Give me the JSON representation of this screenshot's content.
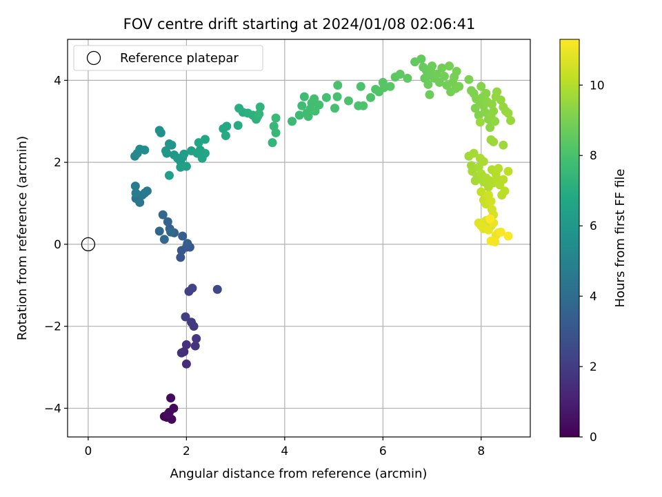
{
  "chart_data": {
    "type": "scatter",
    "title": "FOV centre drift starting at 2024/01/08 02:06:41",
    "xlabel": "Angular distance from reference (arcmin)",
    "ylabel": "Rotation from reference (arcmin)",
    "xlim": [
      -0.42,
      9.0
    ],
    "ylim": [
      -4.7,
      5.0
    ],
    "x_ticks": [
      0,
      2,
      4,
      6,
      8
    ],
    "y_ticks": [
      -4,
      -2,
      0,
      2,
      4
    ],
    "x_tick_labels": [
      "0",
      "2",
      "4",
      "6",
      "8"
    ],
    "y_tick_labels": [
      "−4",
      "−2",
      "0",
      "2",
      "4"
    ],
    "grid": true,
    "legend": {
      "position": "top-left",
      "entries": [
        "Reference platepar"
      ]
    },
    "reference_point": {
      "x": 0,
      "y": 0,
      "marker": "open-circle"
    },
    "colorbar": {
      "label": "Hours from first FF file",
      "range": [
        0,
        11.3
      ],
      "ticks": [
        0,
        2,
        4,
        6,
        8,
        10
      ],
      "tick_labels": [
        "0",
        "2",
        "4",
        "6",
        "8",
        "10"
      ],
      "colormap": "viridis"
    },
    "points": [
      [
        1.55,
        -4.2,
        0.05
      ],
      [
        1.6,
        -4.22,
        0.1
      ],
      [
        1.65,
        -4.1,
        0.15
      ],
      [
        1.7,
        -4.27,
        0.2
      ],
      [
        1.74,
        -4.0,
        0.25
      ],
      [
        1.68,
        -3.75,
        0.3
      ],
      [
        1.62,
        -4.15,
        0.35
      ],
      [
        1.95,
        -2.62,
        1.4
      ],
      [
        2.0,
        -2.92,
        1.5
      ],
      [
        1.9,
        -2.65,
        1.55
      ],
      [
        2.0,
        -2.45,
        1.6
      ],
      [
        2.18,
        -2.48,
        1.7
      ],
      [
        2.2,
        -2.3,
        1.8
      ],
      [
        2.15,
        -2.0,
        1.9
      ],
      [
        2.1,
        -1.9,
        1.95
      ],
      [
        1.98,
        -1.77,
        2.0
      ],
      [
        2.05,
        -1.15,
        2.2
      ],
      [
        2.12,
        -1.07,
        2.3
      ],
      [
        2.63,
        -1.1,
        2.4
      ],
      [
        1.88,
        -0.32,
        3.0
      ],
      [
        1.9,
        -0.15,
        3.1
      ],
      [
        2.0,
        -0.07,
        3.15
      ],
      [
        2.07,
        -0.07,
        3.2
      ],
      [
        2.02,
        0.02,
        3.3
      ],
      [
        1.92,
        0.2,
        3.4
      ],
      [
        1.75,
        0.28,
        3.5
      ],
      [
        1.66,
        0.38,
        3.55
      ],
      [
        1.62,
        0.55,
        3.6
      ],
      [
        1.52,
        0.72,
        3.7
      ],
      [
        1.45,
        0.32,
        3.75
      ],
      [
        1.55,
        0.12,
        3.8
      ],
      [
        1.68,
        0.3,
        3.85
      ],
      [
        0.97,
        1.12,
        4.3
      ],
      [
        1.05,
        1.02,
        4.4
      ],
      [
        1.1,
        1.2,
        4.5
      ],
      [
        1.15,
        1.25,
        4.55
      ],
      [
        1.2,
        1.3,
        4.6
      ],
      [
        0.96,
        1.42,
        4.65
      ],
      [
        0.97,
        1.25,
        4.7
      ],
      [
        0.95,
        2.15,
        5.2
      ],
      [
        1.0,
        2.22,
        5.3
      ],
      [
        1.05,
        2.32,
        5.4
      ],
      [
        1.15,
        2.3,
        5.5
      ],
      [
        1.45,
        2.78,
        5.6
      ],
      [
        1.48,
        2.72,
        5.65
      ],
      [
        1.6,
        2.22,
        5.8
      ],
      [
        1.65,
        2.45,
        5.85
      ],
      [
        1.7,
        2.42,
        5.9
      ],
      [
        1.58,
        2.28,
        5.95
      ],
      [
        1.75,
        2.18,
        6.0
      ],
      [
        1.82,
        2.1,
        6.1
      ],
      [
        1.88,
        2.02,
        6.15
      ],
      [
        1.92,
        2.12,
        6.2
      ],
      [
        1.95,
        2.2,
        6.25
      ],
      [
        1.88,
        1.88,
        6.3
      ],
      [
        2.0,
        1.9,
        6.35
      ],
      [
        1.65,
        1.68,
        6.4
      ],
      [
        2.1,
        2.28,
        6.45
      ],
      [
        2.22,
        2.22,
        6.5
      ],
      [
        2.28,
        2.3,
        6.55
      ],
      [
        2.32,
        2.1,
        6.6
      ],
      [
        2.38,
        2.22,
        6.65
      ],
      [
        2.25,
        2.48,
        6.7
      ],
      [
        2.38,
        2.56,
        6.75
      ],
      [
        2.75,
        2.82,
        6.8
      ],
      [
        2.82,
        2.88,
        6.85
      ],
      [
        2.8,
        2.65,
        6.9
      ],
      [
        3.05,
        2.9,
        6.95
      ],
      [
        3.07,
        3.32,
        7.0
      ],
      [
        3.15,
        3.22,
        7.05
      ],
      [
        3.25,
        3.2,
        7.1
      ],
      [
        3.35,
        3.15,
        7.15
      ],
      [
        3.42,
        3.05,
        7.2
      ],
      [
        3.45,
        3.12,
        7.25
      ],
      [
        3.5,
        3.35,
        7.3
      ],
      [
        3.48,
        3.18,
        7.35
      ],
      [
        3.75,
        2.48,
        7.4
      ],
      [
        3.78,
        2.88,
        7.45
      ],
      [
        3.82,
        2.72,
        7.5
      ],
      [
        3.82,
        3.08,
        7.55
      ],
      [
        4.15,
        3.0,
        7.6
      ],
      [
        4.3,
        3.15,
        7.65
      ],
      [
        4.35,
        3.38,
        7.7
      ],
      [
        4.4,
        3.6,
        7.72
      ],
      [
        4.45,
        3.2,
        7.75
      ],
      [
        4.48,
        3.12,
        7.78
      ],
      [
        4.52,
        3.3,
        7.8
      ],
      [
        4.55,
        3.45,
        7.82
      ],
      [
        4.6,
        3.55,
        7.84
      ],
      [
        4.62,
        3.25,
        7.86
      ],
      [
        4.7,
        3.4,
        7.88
      ],
      [
        4.85,
        3.58,
        7.9
      ],
      [
        5.02,
        3.32,
        7.95
      ],
      [
        5.07,
        3.6,
        7.97
      ],
      [
        5.08,
        3.88,
        8.0
      ],
      [
        5.3,
        3.5,
        8.02
      ],
      [
        5.5,
        3.38,
        8.04
      ],
      [
        5.55,
        3.85,
        8.06
      ],
      [
        5.6,
        3.38,
        8.08
      ],
      [
        5.75,
        3.58,
        8.1
      ],
      [
        5.85,
        3.78,
        8.15
      ],
      [
        5.92,
        3.72,
        8.2
      ],
      [
        6.0,
        3.95,
        8.25
      ],
      [
        6.02,
        3.82,
        8.3
      ],
      [
        6.15,
        3.85,
        8.35
      ],
      [
        6.25,
        4.08,
        8.4
      ],
      [
        6.35,
        4.15,
        8.45
      ],
      [
        6.5,
        4.05,
        8.5
      ],
      [
        6.65,
        4.45,
        8.55
      ],
      [
        6.78,
        4.52,
        8.6
      ],
      [
        6.82,
        4.32,
        8.62
      ],
      [
        6.85,
        4.05,
        8.64
      ],
      [
        6.88,
        4.25,
        8.66
      ],
      [
        6.9,
        4.1,
        8.68
      ],
      [
        6.92,
        3.9,
        8.7
      ],
      [
        6.95,
        3.65,
        8.72
      ],
      [
        6.98,
        4.2,
        8.74
      ],
      [
        7.0,
        4.35,
        8.76
      ],
      [
        7.05,
        4.05,
        8.78
      ],
      [
        7.1,
        4.15,
        8.8
      ],
      [
        7.15,
        3.95,
        8.82
      ],
      [
        7.2,
        4.3,
        8.84
      ],
      [
        7.25,
        4.1,
        8.86
      ],
      [
        7.3,
        3.88,
        8.88
      ],
      [
        7.35,
        4.35,
        8.9
      ],
      [
        7.38,
        3.72,
        8.92
      ],
      [
        7.42,
        3.95,
        8.94
      ],
      [
        7.45,
        4.08,
        8.96
      ],
      [
        7.5,
        4.22,
        8.98
      ],
      [
        7.48,
        3.8,
        9.0
      ],
      [
        7.55,
        3.85,
        9.02
      ],
      [
        7.75,
        4.02,
        9.05
      ],
      [
        7.8,
        3.75,
        9.08
      ],
      [
        7.85,
        3.68,
        9.1
      ],
      [
        7.88,
        3.32,
        9.12
      ],
      [
        7.9,
        3.55,
        9.14
      ],
      [
        7.95,
        3.15,
        9.16
      ],
      [
        7.98,
        3.45,
        9.18
      ],
      [
        8.0,
        3.85,
        9.2
      ],
      [
        8.02,
        3.58,
        9.22
      ],
      [
        8.05,
        3.38,
        9.24
      ],
      [
        8.08,
        3.22,
        9.26
      ],
      [
        8.1,
        3.68,
        9.28
      ],
      [
        8.12,
        3.48,
        9.3
      ],
      [
        8.15,
        3.05,
        9.32
      ],
      [
        8.18,
        2.85,
        9.34
      ],
      [
        8.2,
        3.12,
        9.36
      ],
      [
        8.22,
        3.42,
        9.38
      ],
      [
        8.25,
        3.25,
        9.4
      ],
      [
        8.28,
        3.0,
        9.42
      ],
      [
        8.3,
        3.6,
        9.44
      ],
      [
        8.32,
        3.72,
        9.46
      ],
      [
        8.4,
        3.52,
        9.48
      ],
      [
        8.45,
        3.35,
        9.5
      ],
      [
        8.5,
        3.25,
        9.52
      ],
      [
        8.55,
        3.2,
        9.54
      ],
      [
        8.6,
        3.02,
        9.56
      ],
      [
        7.98,
        2.98,
        9.58
      ],
      [
        8.2,
        2.55,
        9.6
      ],
      [
        8.25,
        2.5,
        9.62
      ],
      [
        8.45,
        2.42,
        9.64
      ],
      [
        7.75,
        2.15,
        9.7
      ],
      [
        7.8,
        1.92,
        9.72
      ],
      [
        7.85,
        2.22,
        9.74
      ],
      [
        7.82,
        1.78,
        9.76
      ],
      [
        7.88,
        1.55,
        9.78
      ],
      [
        7.92,
        1.65,
        9.8
      ],
      [
        7.95,
        1.88,
        9.82
      ],
      [
        7.98,
        2.1,
        9.84
      ],
      [
        8.05,
        2.02,
        9.86
      ],
      [
        8.0,
        1.72,
        9.88
      ],
      [
        8.05,
        1.52,
        9.9
      ],
      [
        8.1,
        1.62,
        9.92
      ],
      [
        8.15,
        1.4,
        9.94
      ],
      [
        8.18,
        1.55,
        9.96
      ],
      [
        8.22,
        1.82,
        9.98
      ],
      [
        8.25,
        1.5,
        10.0
      ],
      [
        8.3,
        1.72,
        10.02
      ],
      [
        8.32,
        1.6,
        10.04
      ],
      [
        8.35,
        1.85,
        10.06
      ],
      [
        8.38,
        1.45,
        10.08
      ],
      [
        8.42,
        1.2,
        10.1
      ],
      [
        8.45,
        1.58,
        10.12
      ],
      [
        8.48,
        1.3,
        10.14
      ],
      [
        8.55,
        1.78,
        10.16
      ],
      [
        8.0,
        1.28,
        10.3
      ],
      [
        8.05,
        1.08,
        10.35
      ],
      [
        8.1,
        0.98,
        10.4
      ],
      [
        8.15,
        1.2,
        10.45
      ],
      [
        8.2,
        1.05,
        10.5
      ],
      [
        8.22,
        0.85,
        10.55
      ],
      [
        8.25,
        0.72,
        10.6
      ],
      [
        8.2,
        0.45,
        10.65
      ],
      [
        8.1,
        0.58,
        10.7
      ],
      [
        8.05,
        0.38,
        10.75
      ],
      [
        7.95,
        0.52,
        10.8
      ],
      [
        8.0,
        0.45,
        10.85
      ],
      [
        8.15,
        0.35,
        10.9
      ],
      [
        8.25,
        0.52,
        10.95
      ],
      [
        8.3,
        0.22,
        11.0
      ],
      [
        8.35,
        0.28,
        11.05
      ],
      [
        8.2,
        0.08,
        11.1
      ],
      [
        8.28,
        0.06,
        11.15
      ],
      [
        8.4,
        0.3,
        11.2
      ],
      [
        8.55,
        0.2,
        11.25
      ],
      [
        8.18,
        0.62,
        11.3
      ]
    ]
  }
}
